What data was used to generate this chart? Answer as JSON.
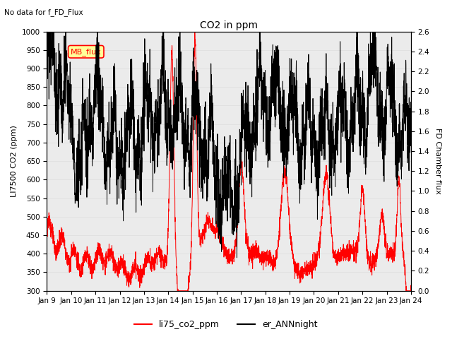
{
  "title": "CO2 in ppm",
  "subtitle": "No data for f_FD_Flux",
  "ylabel_left": "LI7500 CO2 (ppm)",
  "ylabel_right": "FD Chamber flux",
  "ylim_left": [
    300,
    1000
  ],
  "ylim_right": [
    0.0,
    2.6
  ],
  "yticks_left": [
    300,
    350,
    400,
    450,
    500,
    550,
    600,
    650,
    700,
    750,
    800,
    850,
    900,
    950,
    1000
  ],
  "yticks_right": [
    0.0,
    0.2,
    0.4,
    0.6,
    0.8,
    1.0,
    1.2,
    1.4,
    1.6,
    1.8,
    2.0,
    2.2,
    2.4,
    2.6
  ],
  "xtick_labels": [
    "Jan 9",
    "Jan 10",
    "Jan 11",
    "Jan 12",
    "Jan 13",
    "Jan 14",
    "Jan 15",
    "Jan 16",
    "Jan 17",
    "Jan 18",
    "Jan 19",
    "Jan 20",
    "Jan 21",
    "Jan 22",
    "Jan 23",
    "Jan 24"
  ],
  "legend_entries": [
    "li75_co2_ppm",
    "er_ANNnight"
  ],
  "legend_colors": [
    "red",
    "black"
  ],
  "box_label": "MB_flux",
  "box_color": "#ffff99",
  "box_text_color": "red",
  "grid_color": "#e0e0e0",
  "background_color": "#ebebeb"
}
